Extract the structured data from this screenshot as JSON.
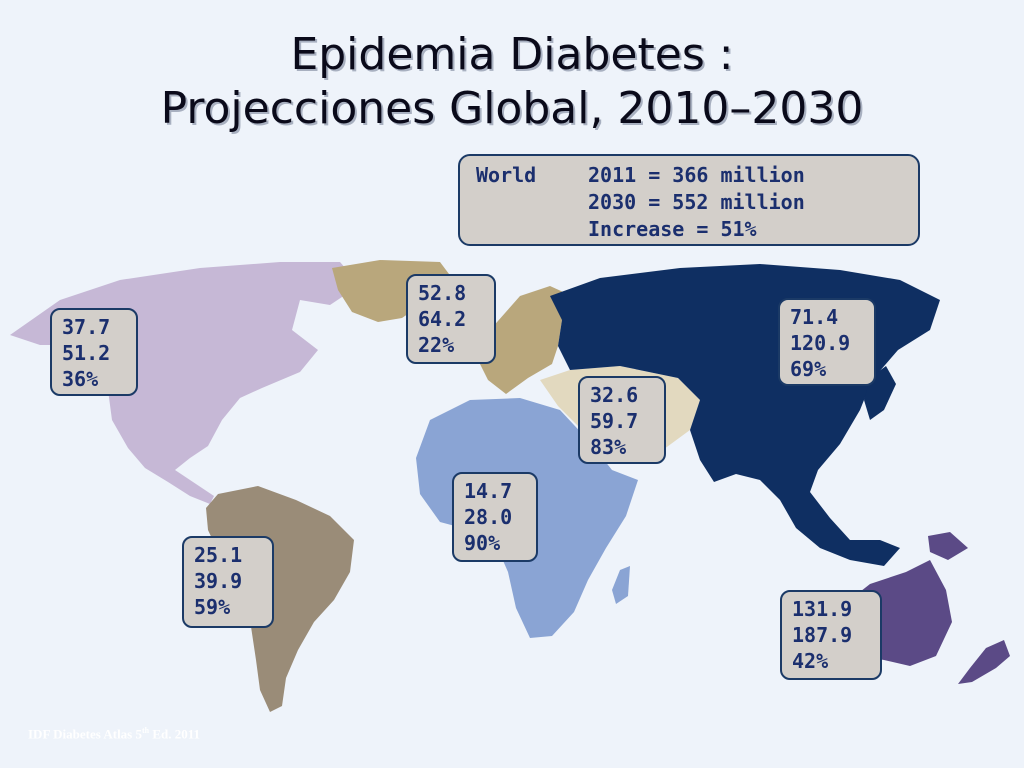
{
  "title": {
    "line1": "Epidemia Diabetes :",
    "line2": "Projecciones Global, 2010–2030"
  },
  "world": {
    "label": "World",
    "line1": "2011 = 366 million",
    "line2": "2030 = 552 million",
    "line3": "Increase = 51%"
  },
  "regions": {
    "north_america": {
      "v2011": "37.7",
      "v2030": "51.2",
      "increase": "36%",
      "color": "#c6b8d6"
    },
    "europe": {
      "v2011": "52.8",
      "v2030": "64.2",
      "increase": "22%",
      "color": "#b9a77c"
    },
    "middle_east": {
      "v2011": "32.6",
      "v2030": "59.7",
      "increase": "83%",
      "color": "#e2d9bf"
    },
    "western_pacific_asia": {
      "v2011": "71.4",
      "v2030": "120.9",
      "increase": "69%",
      "color": "#0f2f62"
    },
    "africa": {
      "v2011": "14.7",
      "v2030": "28.0",
      "increase": "90%",
      "color": "#8aa4d4"
    },
    "south_america": {
      "v2011": "25.1",
      "v2030": "39.9",
      "increase": "59%",
      "color": "#9a8c78"
    },
    "oceania": {
      "v2011": "131.9",
      "v2030": "187.9",
      "increase": "42%",
      "color": "#5b4a86"
    }
  },
  "source": {
    "prefix": "IDF Diabetes Atlas 5",
    "sup": "th",
    "suffix": " Ed. 2011"
  }
}
